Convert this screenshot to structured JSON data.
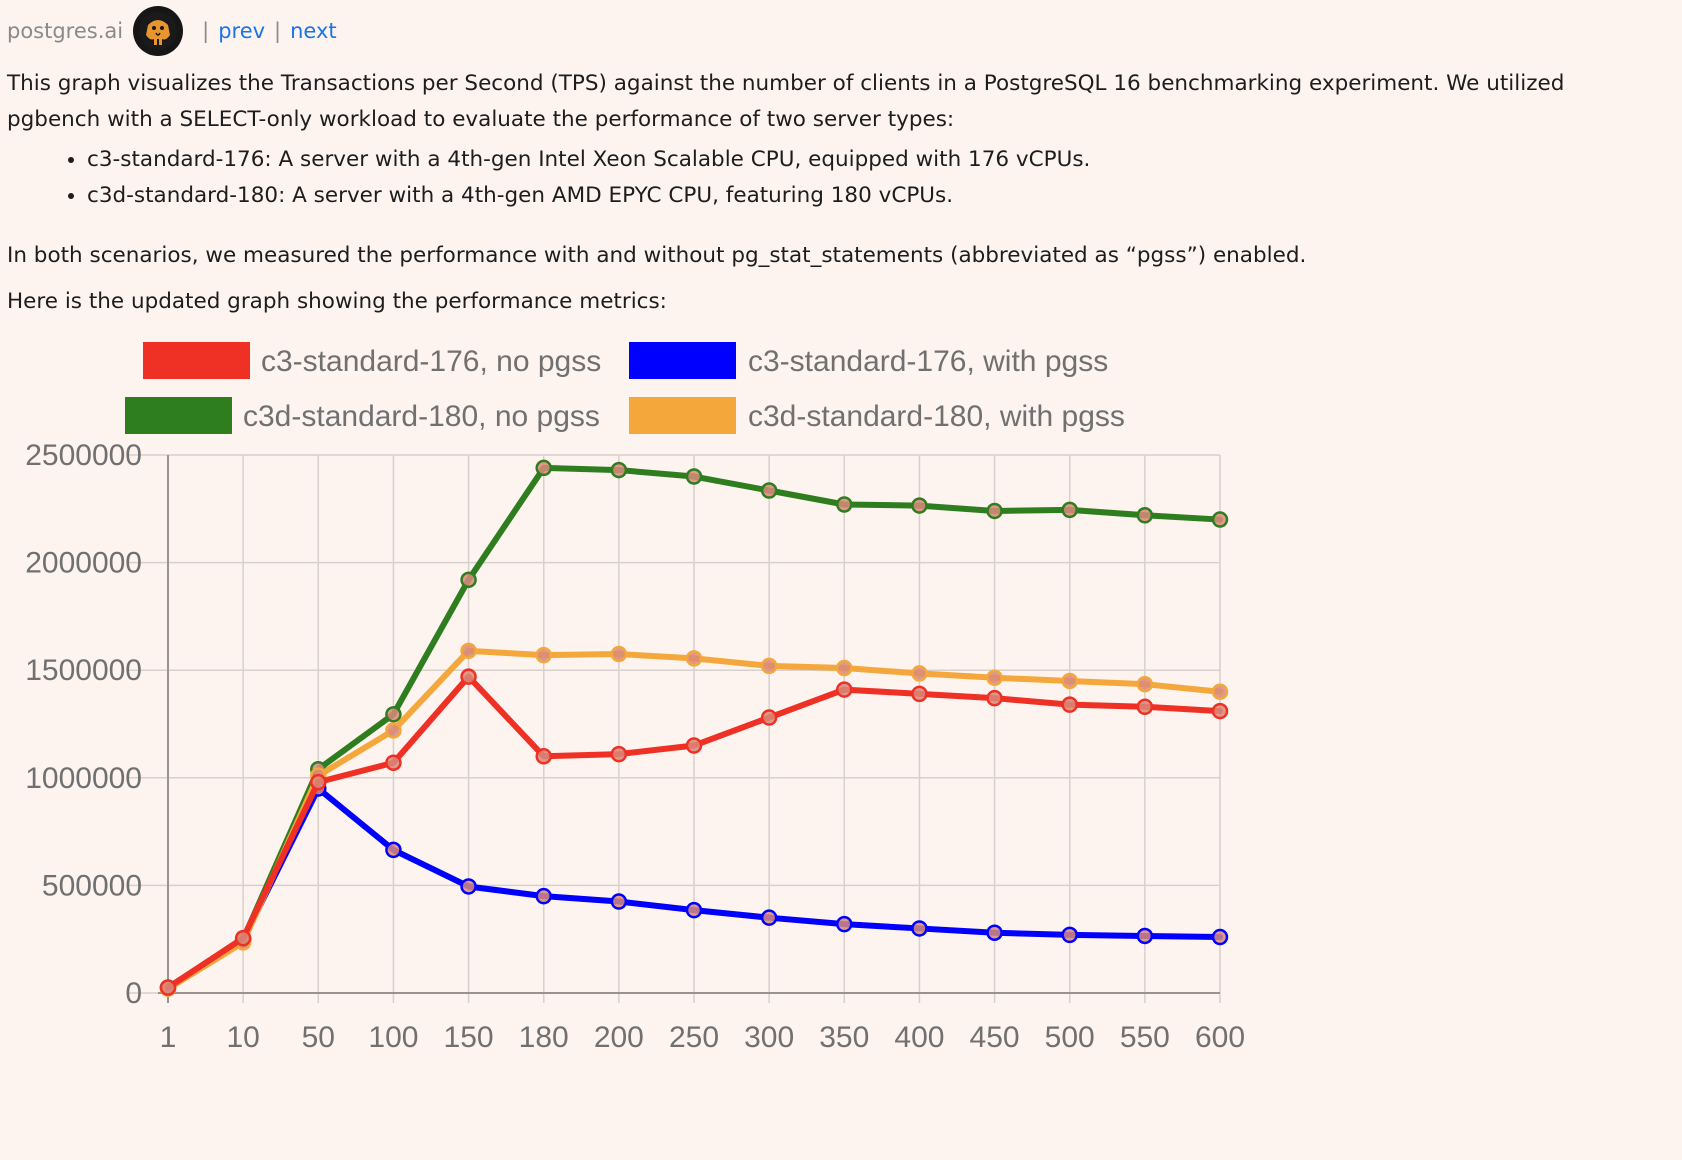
{
  "topbar": {
    "site": "postgres.ai",
    "sep": "|",
    "prev": "prev",
    "next": "next"
  },
  "content": {
    "intro": "This graph visualizes the Transactions per Second (TPS) against the number of clients in a PostgreSQL 16 benchmarking experiment. We utilized pgbench with a SELECT-only workload to evaluate the performance of two server types:",
    "bullets": [
      "c3-standard-176: A server with a 4th-gen Intel Xeon Scalable CPU, equipped with 176 vCPUs.",
      "c3d-standard-180: A server with a 4th-gen AMD EPYC CPU, featuring 180 vCPUs."
    ],
    "para2": "In both scenarios, we measured the performance with and without pg_stat_statements (abbreviated as “pgss”) enabled.",
    "para3": "Here is the updated graph showing the performance metrics:"
  },
  "colors": {
    "link": "#1a73e8",
    "background": "#fdf3ef"
  },
  "chart_data": {
    "type": "line",
    "categories": [
      "1",
      "10",
      "50",
      "100",
      "150",
      "180",
      "200",
      "250",
      "300",
      "350",
      "400",
      "450",
      "500",
      "550",
      "600"
    ],
    "ylim": [
      0,
      2500000
    ],
    "yticks": [
      0,
      500000,
      1000000,
      1500000,
      2000000,
      2500000
    ],
    "grid": true,
    "legend_position": "top",
    "series": [
      {
        "name": "c3-standard-176, no pgss",
        "color": "#ee3124",
        "values": [
          25000,
          255000,
          980000,
          1070000,
          1470000,
          1100000,
          1110000,
          1150000,
          1280000,
          1410000,
          1390000,
          1370000,
          1340000,
          1330000,
          1310000
        ]
      },
      {
        "name": "c3-standard-176, with pgss",
        "color": "#0000ff",
        "values": [
          25000,
          250000,
          950000,
          665000,
          495000,
          450000,
          425000,
          385000,
          350000,
          320000,
          300000,
          280000,
          270000,
          265000,
          260000
        ]
      },
      {
        "name": "c3d-standard-180, no pgss",
        "color": "#2e7d1f",
        "values": [
          25000,
          250000,
          1040000,
          1295000,
          1920000,
          2440000,
          2430000,
          2400000,
          2335000,
          2270000,
          2265000,
          2240000,
          2245000,
          2220000,
          2200000
        ]
      },
      {
        "name": "c3d-standard-180, with pgss",
        "color": "#f4a83c",
        "values": [
          20000,
          235000,
          1010000,
          1220000,
          1590000,
          1570000,
          1575000,
          1555000,
          1520000,
          1510000,
          1485000,
          1465000,
          1450000,
          1435000,
          1400000
        ]
      }
    ]
  }
}
